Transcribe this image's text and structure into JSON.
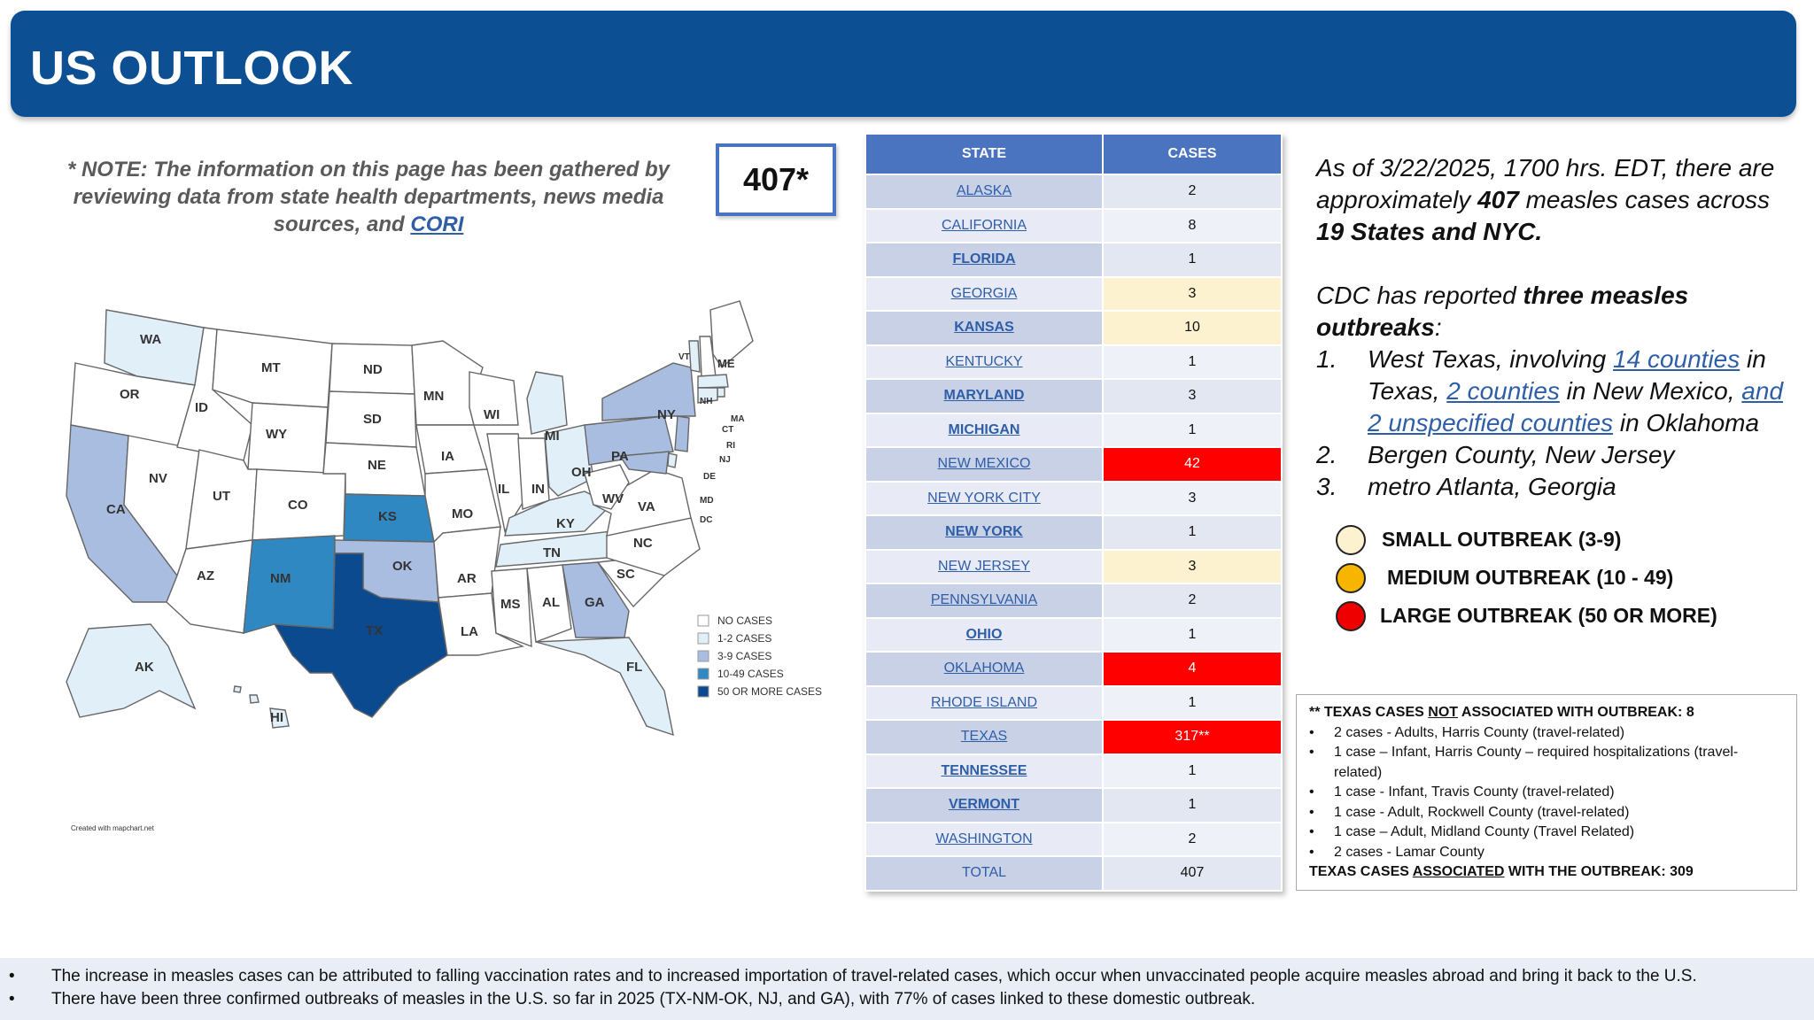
{
  "header": {
    "title": "US OUTLOOK"
  },
  "note": {
    "text": "* NOTE: The information on this page has been gathered by reviewing data from state health departments, news media sources, and ",
    "link": "CORI"
  },
  "total_box": "407*",
  "map": {
    "states": [
      "WA",
      "OR",
      "CA",
      "NV",
      "ID",
      "MT",
      "WY",
      "UT",
      "AZ",
      "CO",
      "NM",
      "ND",
      "SD",
      "NE",
      "KS",
      "OK",
      "TX",
      "MN",
      "IA",
      "MO",
      "AR",
      "LA",
      "WI",
      "IL",
      "MI",
      "IN",
      "OH",
      "KY",
      "TN",
      "MS",
      "AL",
      "GA",
      "FL",
      "SC",
      "NC",
      "VA",
      "WV",
      "PA",
      "NY",
      "VT",
      "NH",
      "ME",
      "MA",
      "RI",
      "CT",
      "NJ",
      "DE",
      "MD",
      "DC",
      "AK",
      "HI"
    ],
    "legend": [
      "NO CASES",
      "1-2 CASES",
      "3-9 CASES",
      "10-49 CASES",
      "50 OR MORE CASES"
    ],
    "colors": {
      "none": "#ffffff",
      "c1_2": "#e1f0f8",
      "c3_9": "#a9bde0",
      "c10_49": "#2f88c1",
      "c50": "#0b4a8f"
    },
    "credit": "Created with mapchart.net"
  },
  "table": {
    "headers": {
      "state": "STATE",
      "cases": "CASES"
    },
    "rows": [
      {
        "state": "ALASKA",
        "cases": "2"
      },
      {
        "state": "CALIFORNIA",
        "cases": "8"
      },
      {
        "state": "FLORIDA",
        "cases": "1"
      },
      {
        "state": "GEORGIA",
        "cases": "3"
      },
      {
        "state": "KANSAS",
        "cases": "10"
      },
      {
        "state": "KENTUCKY",
        "cases": "1"
      },
      {
        "state": "MARYLAND",
        "cases": "3"
      },
      {
        "state": "MICHIGAN",
        "cases": "1"
      },
      {
        "state": "NEW MEXICO",
        "cases": "42"
      },
      {
        "state": "NEW YORK CITY",
        "cases": "3"
      },
      {
        "state": "NEW YORK",
        "cases": "1"
      },
      {
        "state": "NEW JERSEY",
        "cases": "3"
      },
      {
        "state": "PENNSYLVANIA",
        "cases": "2"
      },
      {
        "state": "OHIO",
        "cases": "1"
      },
      {
        "state": "OKLAHOMA",
        "cases": "4"
      },
      {
        "state": "RHODE ISLAND",
        "cases": "1"
      },
      {
        "state": "TEXAS",
        "cases": "317**"
      },
      {
        "state": "TENNESSEE",
        "cases": "1"
      },
      {
        "state": "VERMONT",
        "cases": "1"
      },
      {
        "state": "WASHINGTON",
        "cases": "2"
      },
      {
        "state": "TOTAL",
        "cases": "407"
      }
    ]
  },
  "summary": {
    "p1_a": "As of 3/22/2025, 1700 hrs. EDT, there are approximately ",
    "p1_count": "407",
    "p1_b": " measles cases across ",
    "p1_states": "19 States and NYC.",
    "p2_a": "CDC has reported ",
    "p2_bold": "three measles outbreaks",
    "p2_b": ":",
    "item1_num": "1.",
    "item1_a": "West Texas, involving ",
    "item1_link1": "14 counties",
    "item1_b": " in Texas, ",
    "item1_link2": "2 counties",
    "item1_c": " in New Mexico, ",
    "item1_link3": "and 2 unspecified counties",
    "item1_d": " in Oklahoma",
    "item2_num": "2.",
    "item2": "Bergen County, New Jersey",
    "item3_num": "3.",
    "item3": "metro Atlanta, Georgia"
  },
  "legend": {
    "small": {
      "label": "SMALL OUTBREAK (3-9)",
      "color": "#fdf2cf"
    },
    "medium": {
      "label": "MEDIUM OUTBREAK (10 - 49)",
      "color": "#f7b500"
    },
    "large": {
      "label": "LARGE OUTBREAK (50 OR MORE)",
      "color": "#ee0000"
    }
  },
  "texas_box": {
    "title_a": "** TEXAS CASES ",
    "title_not": "NOT",
    "title_b": " ASSOCIATED WITH OUTBREAK: 8",
    "items": [
      "2 cases - Adults, Harris County (travel-related)",
      "1 case – Infant, Harris County – required hospitalizations (travel-related)",
      "1 case - Infant, Travis County (travel-related)",
      "1 case - Adult, Rockwell County (travel-related)",
      "1 case – Adult, Midland County (Travel Related)",
      "2 cases - Lamar County"
    ],
    "footer_a": "TEXAS CASES ",
    "footer_u": "ASSOCIATED",
    "footer_b": " WITH THE OUTBREAK: 309"
  },
  "footer": {
    "line1": "The increase in measles cases can be attributed to falling vaccination rates and to increased importation of travel-related cases, which occur when unvaccinated people acquire measles abroad and bring it back to the U.S.",
    "line2": "There have been three confirmed outbreaks of measles in the U.S. so far in 2025 (TX-NM-OK, NJ, and GA), with 77% of cases linked to these domestic outbreak."
  }
}
